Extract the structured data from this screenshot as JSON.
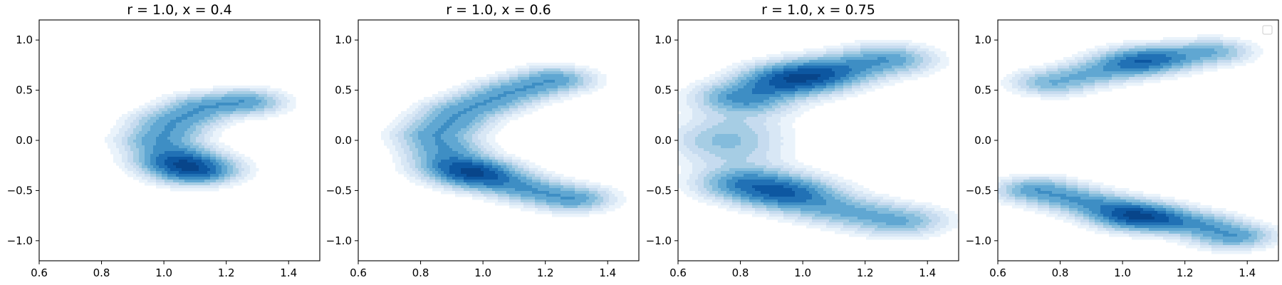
{
  "chart_data": [
    {
      "type": "kde-contour",
      "title": "r = 1.0, x = 0.4",
      "xlim": [
        0.6,
        1.5
      ],
      "ylim": [
        -1.2,
        1.2
      ],
      "xticks": [
        "0.6",
        "0.8",
        "1.0",
        "1.2",
        "1.4"
      ],
      "xtick_values": [
        0.6,
        0.8,
        1.0,
        1.2,
        1.4
      ],
      "yticks": [
        "−1.0",
        "−0.5",
        "0.0",
        "0.5",
        "1.0"
      ],
      "ytick_values": [
        -1.0,
        -0.5,
        0.0,
        0.5,
        1.0
      ],
      "legend": false,
      "clusters": [
        {
          "path": [
            [
              1.25,
              0.38
            ],
            [
              1.13,
              0.33
            ],
            [
              1.03,
              0.18
            ],
            [
              0.99,
              0.0
            ],
            [
              1.03,
              -0.18
            ],
            [
              1.1,
              -0.32
            ]
          ],
          "peak": [
            1.08,
            -0.25
          ],
          "half_width": 0.085,
          "weight": 1.0
        }
      ]
    },
    {
      "type": "kde-contour",
      "title": "r = 1.0, x = 0.6",
      "xlim": [
        0.6,
        1.5
      ],
      "ylim": [
        -1.2,
        1.2
      ],
      "xticks": [
        "0.6",
        "0.8",
        "1.0",
        "1.2",
        "1.4"
      ],
      "xtick_values": [
        0.6,
        0.8,
        1.0,
        1.2,
        1.4
      ],
      "yticks": [
        "−1.0",
        "−0.5",
        "0.0",
        "0.5",
        "1.0"
      ],
      "ytick_values": [
        -1.0,
        -0.5,
        0.0,
        0.5,
        1.0
      ],
      "legend": false,
      "clusters": [
        {
          "path": [
            [
              1.22,
              0.6
            ],
            [
              1.08,
              0.47
            ],
            [
              0.93,
              0.28
            ],
            [
              0.85,
              0.05
            ],
            [
              0.9,
              -0.22
            ],
            [
              1.02,
              -0.38
            ],
            [
              1.16,
              -0.5
            ],
            [
              1.28,
              -0.58
            ]
          ],
          "peak": [
            0.96,
            -0.32
          ],
          "half_width": 0.085,
          "weight": 1.0
        }
      ]
    },
    {
      "type": "kde-contour",
      "title": "r = 1.0, x = 0.75",
      "xlim": [
        0.6,
        1.5
      ],
      "ylim": [
        -1.2,
        1.2
      ],
      "xticks": [
        "0.6",
        "0.8",
        "1.0",
        "1.2",
        "1.4"
      ],
      "xtick_values": [
        0.6,
        0.8,
        1.0,
        1.2,
        1.4
      ],
      "yticks": [
        "−1.0",
        "−0.5",
        "0.0",
        "0.5",
        "1.0"
      ],
      "ytick_values": [
        -1.0,
        -0.5,
        0.0,
        0.5,
        1.0
      ],
      "legend": false,
      "clusters": [
        {
          "path": [
            [
              0.82,
              0.45
            ],
            [
              0.95,
              0.6
            ],
            [
              1.1,
              0.7
            ],
            [
              1.26,
              0.8
            ]
          ],
          "peak": [
            1.0,
            0.62
          ],
          "half_width": 0.1,
          "weight": 1.0
        },
        {
          "path": [
            [
              0.8,
              0.3
            ],
            [
              0.74,
              0.0
            ],
            [
              0.8,
              -0.3
            ]
          ],
          "peak": [
            0.77,
            0.0
          ],
          "half_width": 0.11,
          "weight": 0.35
        },
        {
          "path": [
            [
              0.82,
              -0.45
            ],
            [
              0.95,
              -0.55
            ],
            [
              1.1,
              -0.68
            ],
            [
              1.3,
              -0.8
            ]
          ],
          "peak": [
            0.93,
            -0.5
          ],
          "half_width": 0.1,
          "weight": 0.85
        }
      ]
    },
    {
      "type": "kde-contour",
      "title": "",
      "xlim": [
        0.6,
        1.5
      ],
      "ylim": [
        -1.2,
        1.2
      ],
      "xticks": [
        "0.6",
        "0.8",
        "1.0",
        "1.2",
        "1.4"
      ],
      "xtick_values": [
        0.6,
        0.8,
        1.0,
        1.2,
        1.4
      ],
      "yticks": [
        "−1.0",
        "−0.5",
        "0.0",
        "0.5",
        "1.0"
      ],
      "ytick_values": [
        -1.0,
        -0.5,
        0.0,
        0.5,
        1.0
      ],
      "legend": true,
      "legend_position": "top-right",
      "legend_entries": [],
      "clusters": [
        {
          "path": [
            [
              0.78,
              0.58
            ],
            [
              0.95,
              0.7
            ],
            [
              1.1,
              0.8
            ],
            [
              1.28,
              0.88
            ]
          ],
          "peak": [
            1.06,
            0.8
          ],
          "half_width": 0.085,
          "weight": 0.8
        },
        {
          "path": [
            [
              0.73,
              -0.5
            ],
            [
              0.9,
              -0.63
            ],
            [
              1.05,
              -0.75
            ],
            [
              1.25,
              -0.85
            ],
            [
              1.35,
              -0.95
            ]
          ],
          "peak": [
            1.05,
            -0.76
          ],
          "half_width": 0.085,
          "weight": 1.0
        }
      ]
    }
  ],
  "colors": {
    "levels": [
      "#ffffff",
      "#eaf3fb",
      "#d8e7f5",
      "#c6dbef",
      "#a6cde4",
      "#84bcdc",
      "#60a7d2",
      "#3e8ec4",
      "#2171b5",
      "#0d57a1",
      "#08458a"
    ],
    "axes": "#000000",
    "background": "#ffffff"
  }
}
